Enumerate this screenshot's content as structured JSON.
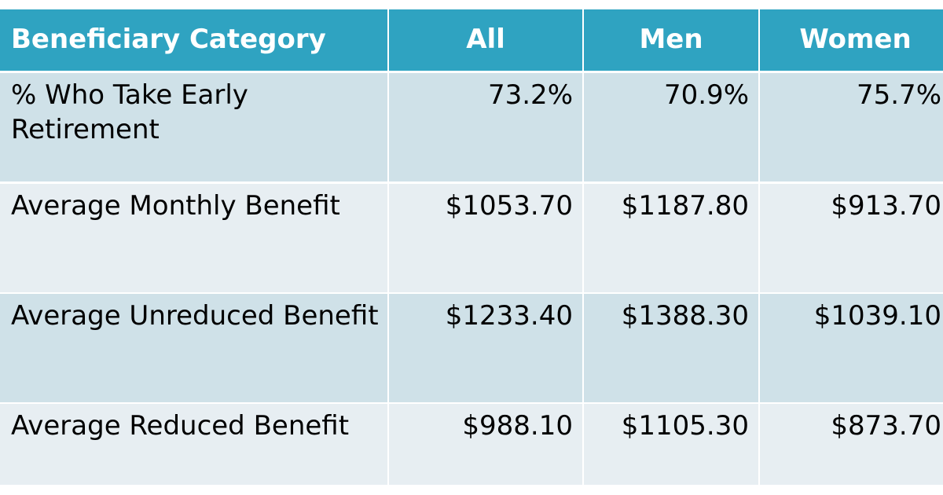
{
  "table": {
    "header": [
      "Beneficiary Category",
      "All",
      "Men",
      "Women"
    ],
    "rows": [
      [
        "% Who Take Early Retirement",
        "73.2%",
        "70.9%",
        "75.7%"
      ],
      [
        "Average Monthly Benefit",
        "$1053.70",
        "$1187.80",
        "$913.70"
      ],
      [
        "Average Unreduced Benefit",
        "$1233.40",
        "$1388.30",
        "$1039.10"
      ],
      [
        "Average Reduced Benefit",
        "$988.10",
        "$1105.30",
        "$873.70"
      ]
    ]
  }
}
